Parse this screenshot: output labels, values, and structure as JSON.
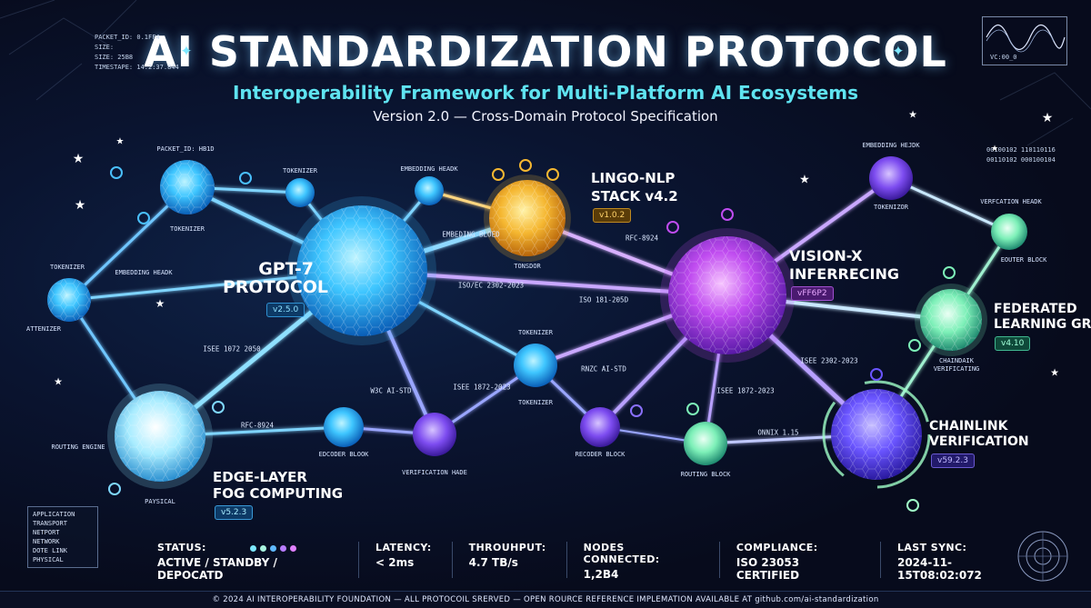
{
  "header": {
    "title": "AI STANDARDIZATION PROTOCOL",
    "subtitle": "Interoperability Framework for Multi-Platform AI Ecosystems",
    "version": "Version 2.0 — Cross-Domain Protocol Specification"
  },
  "hud_top_left": [
    "PACKET_ID: 0.1FF4",
    "SIZE:",
    "SIZE: 25B8",
    "TIMESTAPE: 14:2:37.844"
  ],
  "hud_top_right": [
    "00100102 110110116",
    "00110102 000100104"
  ],
  "oscilloscope_label": "VC:00_0",
  "protocols": [
    {
      "name": [
        "GPT-7",
        "PROTOCOL"
      ],
      "version": "v2.5.0",
      "color": "#35c8ff"
    },
    {
      "name": [
        "LINGO-NLP",
        "STACK v4.2"
      ],
      "version": "v1.0.2",
      "color": "#f5b731"
    },
    {
      "name": [
        "VISION-X",
        "INFERRECING"
      ],
      "version": "vFF6P2",
      "color": "#c04cf0"
    },
    {
      "name": [
        "FEDERATED",
        "LEARNING GRID"
      ],
      "version": "v4.10",
      "color": "#7df0b8"
    },
    {
      "name": [
        "CHAINLINK",
        "VERIFICATION"
      ],
      "version": "v59.2.3",
      "color": "#6a55ff"
    },
    {
      "name": [
        "EDGE-LAYER",
        "FOG COMPUTING"
      ],
      "version": "v5.2.3",
      "color": "#8ce4ff"
    }
  ],
  "node_labels": [
    "PACKET_ID: HB1D",
    "TOKENIZER",
    "TOKENIZER",
    "EMBEDDING HEADK",
    "TONSDOR",
    "TOKENIZER",
    "EMBEDDING HEADK",
    "ATTENIZER",
    "ROUTING ENGINE",
    "PAYSICAL",
    "EDCODER BLOOK",
    "VERIFICATION HADE",
    "TOKENIZER",
    "TOKENIZER",
    "RECODER BLOCK",
    "EMBEDDING HEJDK",
    "TOKENIZOR",
    "VERFCATION HEADK",
    "EOUTER BLOCK",
    "CHAINDAIK VERIFICATING",
    "ROUTING BLOCK"
  ],
  "edge_labels": [
    "EMBEDING BLOED",
    "RFC-8924",
    "ISO/EC 2302-2023",
    "ISO 181-205D",
    "ISEE 1072 2050",
    "W3C AI-STD",
    "ISEE 1872-2023",
    "RNZC AI-STD",
    "RFC-8924",
    "ISEE 1872-2023",
    "ISEE 2302-2023",
    "ONNIX 1.15"
  ],
  "osi_layers": [
    "APPLICATION",
    "TRANSPORT",
    "NETPORT",
    "NETWORK",
    "DOTE LINK",
    "PHYSICAL"
  ],
  "status_bar": [
    {
      "label": "STATUS:",
      "value": "ACTIVE / STANDBY / DEPOCATD",
      "dots": [
        "#7de8ff",
        "#a9f5e0",
        "#5fb9ff",
        "#b87cff",
        "#e080ff"
      ]
    },
    {
      "label": "LATENCY:",
      "value": "< 2ms"
    },
    {
      "label": "THROUHPUT:",
      "value": "4.7 TB/s"
    },
    {
      "label": "NODES CONNECTED:",
      "value": "1,2B4"
    },
    {
      "label": "COMPLIANCE:",
      "value": "ISO 23053 CERTIFIED"
    },
    {
      "label": "LAST SYNC:",
      "value": "2024-11-15T08:02:072"
    }
  ],
  "footer": "© 2024 AI INTEROPERABILITY FOUNDATION — ALL PROTOCOIL SRERVED — OPEN ROURCE REFERENCE IMPLEMATION AVAILABLE AT github.com/ai-standardization"
}
